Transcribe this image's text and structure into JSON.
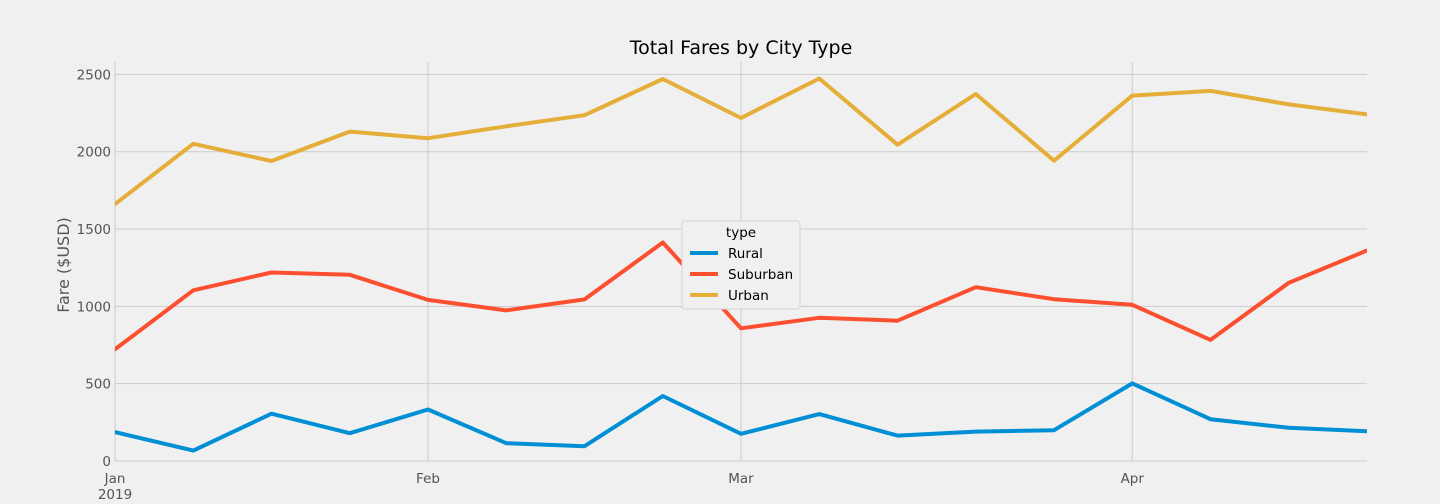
{
  "chart_data": {
    "type": "line",
    "title": "Total Fares by City Type",
    "xlabel": "",
    "ylabel": "Fare ($USD)",
    "ylim": [
      0,
      2580
    ],
    "yticks": [
      0,
      500,
      1000,
      1500,
      2000,
      2500
    ],
    "x": [
      "2019-01-06",
      "2019-01-13",
      "2019-01-20",
      "2019-01-27",
      "2019-02-03",
      "2019-02-10",
      "2019-02-17",
      "2019-02-24",
      "2019-03-03",
      "2019-03-10",
      "2019-03-17",
      "2019-03-24",
      "2019-03-31",
      "2019-04-07",
      "2019-04-14",
      "2019-04-21",
      "2019-04-28"
    ],
    "xticks": [
      {
        "index": 0,
        "label": "Jan",
        "sublabel": "2019"
      },
      {
        "index": 4,
        "label": "Feb",
        "sublabel": ""
      },
      {
        "index": 8,
        "label": "Mar",
        "sublabel": ""
      },
      {
        "index": 13,
        "label": "Apr",
        "sublabel": ""
      }
    ],
    "legend_title": "type",
    "legend_position": "center",
    "grid": true,
    "series": [
      {
        "name": "Rural",
        "color": "#008fd5",
        "values": [
          187,
          67,
          306,
          180,
          333,
          115,
          96,
          420,
          176,
          303,
          164,
          190,
          199,
          502,
          270,
          215,
          192
        ]
      },
      {
        "name": "Suburban",
        "color": "#fc4f30",
        "values": [
          722,
          1104,
          1219,
          1204,
          1042,
          974,
          1045,
          1413,
          858,
          926,
          907,
          1124,
          1046,
          1010,
          783,
          1152,
          1361
        ]
      },
      {
        "name": "Urban",
        "color": "#e5ae38",
        "values": [
          1661,
          2051,
          1940,
          2130,
          2087,
          2164,
          2236,
          2470,
          2218,
          2473,
          2045,
          2373,
          1942,
          2363,
          2393,
          2306,
          2241
        ]
      }
    ]
  }
}
